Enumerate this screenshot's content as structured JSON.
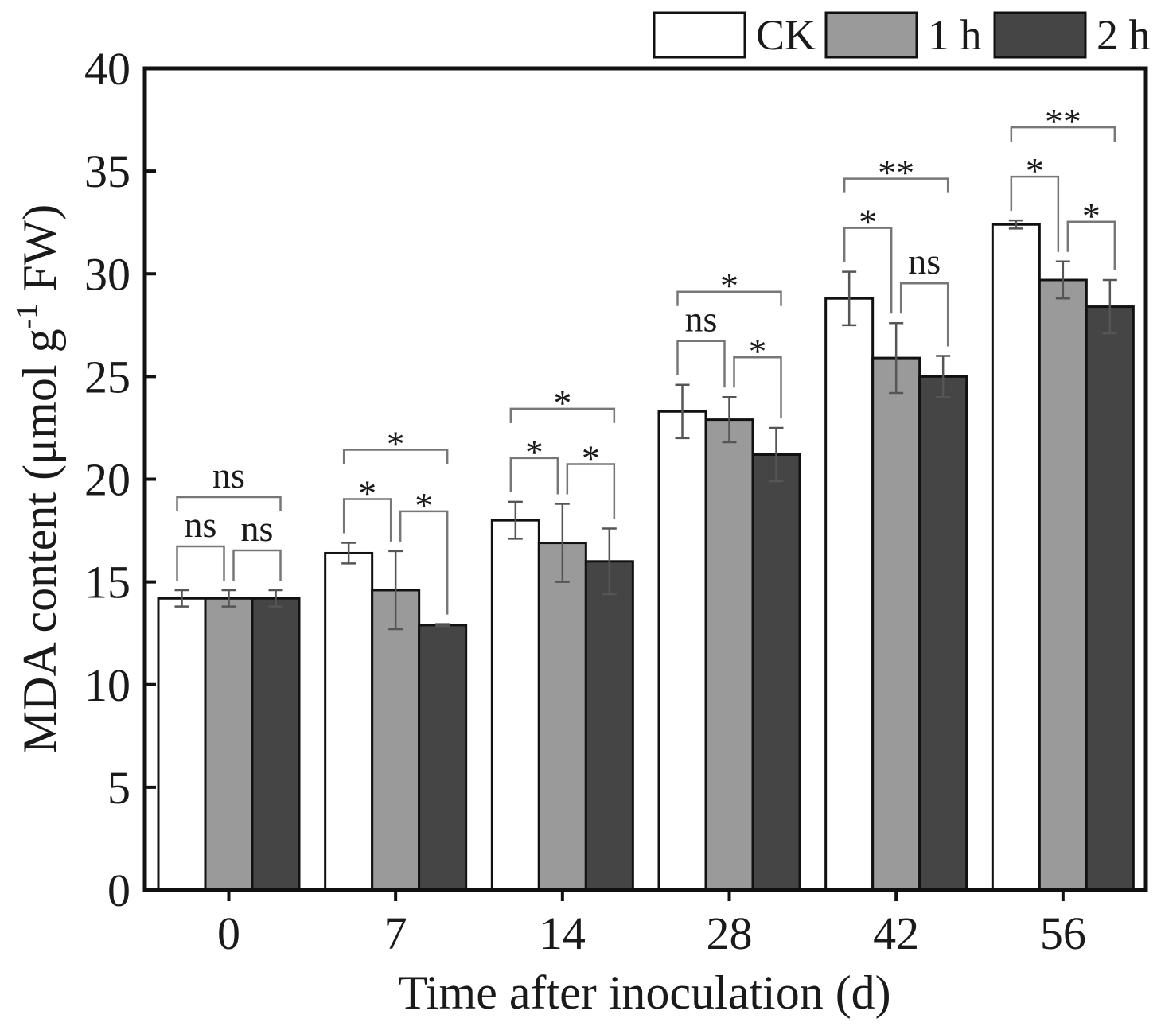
{
  "chart_data": {
    "type": "bar",
    "ylabel_main": "MDA content (μmol g",
    "ylabel_sup": "-1",
    "ylabel_tail": " FW)",
    "xlabel": "Time after inoculation (d)",
    "categories": [
      "0",
      "7",
      "14",
      "28",
      "42",
      "56"
    ],
    "ylim": [
      0,
      40
    ],
    "yticks": [
      "0",
      "5",
      "10",
      "15",
      "20",
      "25",
      "30",
      "35",
      "40"
    ],
    "series": [
      {
        "name": "CK",
        "color": "#ffffff",
        "values": [
          14.2,
          16.4,
          18.0,
          23.3,
          28.8,
          32.4
        ],
        "errors": [
          0.4,
          0.5,
          0.9,
          1.3,
          1.3,
          0.2
        ]
      },
      {
        "name": "1 h",
        "color": "#9a9a9a",
        "values": [
          14.2,
          14.6,
          16.9,
          22.9,
          25.9,
          29.7
        ],
        "errors": [
          0.4,
          1.9,
          1.9,
          1.1,
          1.7,
          0.9
        ]
      },
      {
        "name": "2 h",
        "color": "#454545",
        "values": [
          14.2,
          12.9,
          16.0,
          21.2,
          25.0,
          28.4
        ],
        "errors": [
          0.4,
          0.05,
          1.6,
          1.3,
          1.0,
          1.3
        ]
      }
    ],
    "significance": [
      [
        {
          "pair": "CK-1h",
          "label": "ns"
        },
        {
          "pair": "1h-2h",
          "label": "ns"
        },
        {
          "pair": "CK-2h",
          "label": "ns"
        }
      ],
      [
        {
          "pair": "CK-1h",
          "label": "*"
        },
        {
          "pair": "1h-2h",
          "label": "*"
        },
        {
          "pair": "CK-2h",
          "label": "*"
        }
      ],
      [
        {
          "pair": "CK-1h",
          "label": "*"
        },
        {
          "pair": "1h-2h",
          "label": "*"
        },
        {
          "pair": "CK-2h",
          "label": "*"
        }
      ],
      [
        {
          "pair": "CK-1h",
          "label": "ns"
        },
        {
          "pair": "1h-2h",
          "label": "*"
        },
        {
          "pair": "CK-2h",
          "label": "*"
        }
      ],
      [
        {
          "pair": "CK-1h",
          "label": "*"
        },
        {
          "pair": "1h-2h",
          "label": "ns"
        },
        {
          "pair": "CK-2h",
          "label": "**"
        }
      ],
      [
        {
          "pair": "CK-1h",
          "label": "*"
        },
        {
          "pair": "1h-2h",
          "label": "*"
        },
        {
          "pair": "CK-2h",
          "label": "**"
        }
      ]
    ],
    "legend_position": "top-right"
  }
}
